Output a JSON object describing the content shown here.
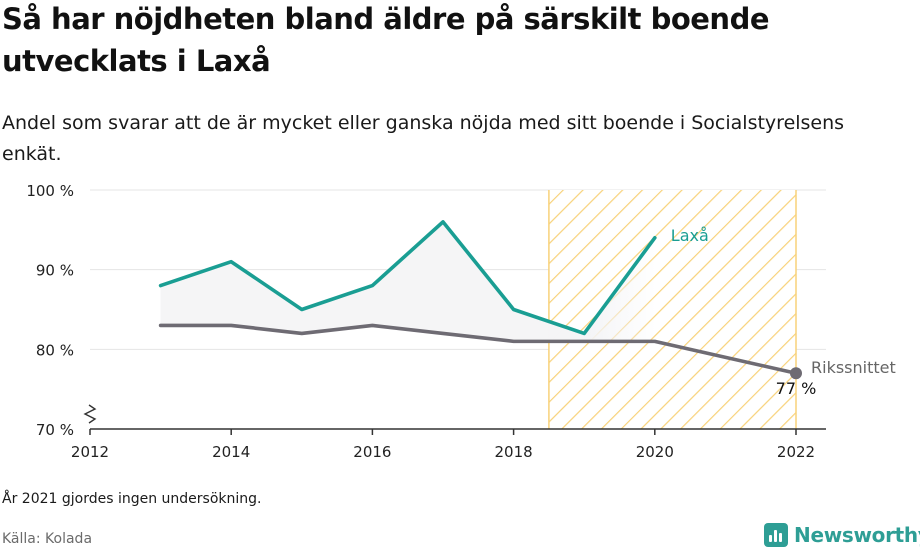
{
  "title": "Så har nöjdheten bland äldre på särskilt boende utvecklats i Laxå",
  "subtitle": "Andel som svarar att de är mycket eller ganska nöjda med sitt boende i Socialstyrelsens enkät.",
  "note": "År 2021 gjordes ingen undersökning.",
  "source": "Källa: Kolada",
  "logo": {
    "text": "Newsworthy",
    "icon": "bar-chart-icon",
    "color": "#2e9e95"
  },
  "chart_data": {
    "type": "line",
    "xlim": [
      2012,
      2022
    ],
    "ylim": [
      70,
      100
    ],
    "y_axis_broken": true,
    "grid": true,
    "x_ticks": [
      {
        "value": 2012,
        "label": "2012"
      },
      {
        "value": 2014,
        "label": "2014"
      },
      {
        "value": 2016,
        "label": "2016"
      },
      {
        "value": 2018,
        "label": "2018"
      },
      {
        "value": 2020,
        "label": "2020"
      },
      {
        "value": 2022,
        "label": "2022"
      }
    ],
    "y_ticks": [
      {
        "value": 70,
        "label": "70 %"
      },
      {
        "value": 80,
        "label": "80 %"
      },
      {
        "value": 90,
        "label": "90 %"
      },
      {
        "value": 100,
        "label": "100 %"
      }
    ],
    "highlight_period": {
      "from": 2018.5,
      "to": 2022,
      "pattern": "hatched",
      "color": "#f8d27a"
    },
    "series": [
      {
        "name": "Laxå",
        "color": "#1a9e93",
        "points": [
          {
            "x": 2013,
            "y": 88
          },
          {
            "x": 2014,
            "y": 91
          },
          {
            "x": 2015,
            "y": 85
          },
          {
            "x": 2016,
            "y": 88
          },
          {
            "x": 2017,
            "y": 96
          },
          {
            "x": 2018,
            "y": 85
          },
          {
            "x": 2019,
            "y": 82
          },
          {
            "x": 2020,
            "y": 94
          }
        ]
      },
      {
        "name": "Rikssnittet",
        "color": "#6e6b73",
        "points": [
          {
            "x": 2013,
            "y": 83
          },
          {
            "x": 2014,
            "y": 83
          },
          {
            "x": 2015,
            "y": 82
          },
          {
            "x": 2016,
            "y": 83
          },
          {
            "x": 2017,
            "y": 82
          },
          {
            "x": 2018,
            "y": 81
          },
          {
            "x": 2019,
            "y": 81
          },
          {
            "x": 2020,
            "y": 81
          },
          {
            "x": 2022,
            "y": 77
          }
        ],
        "end_label": "77 %"
      }
    ]
  }
}
